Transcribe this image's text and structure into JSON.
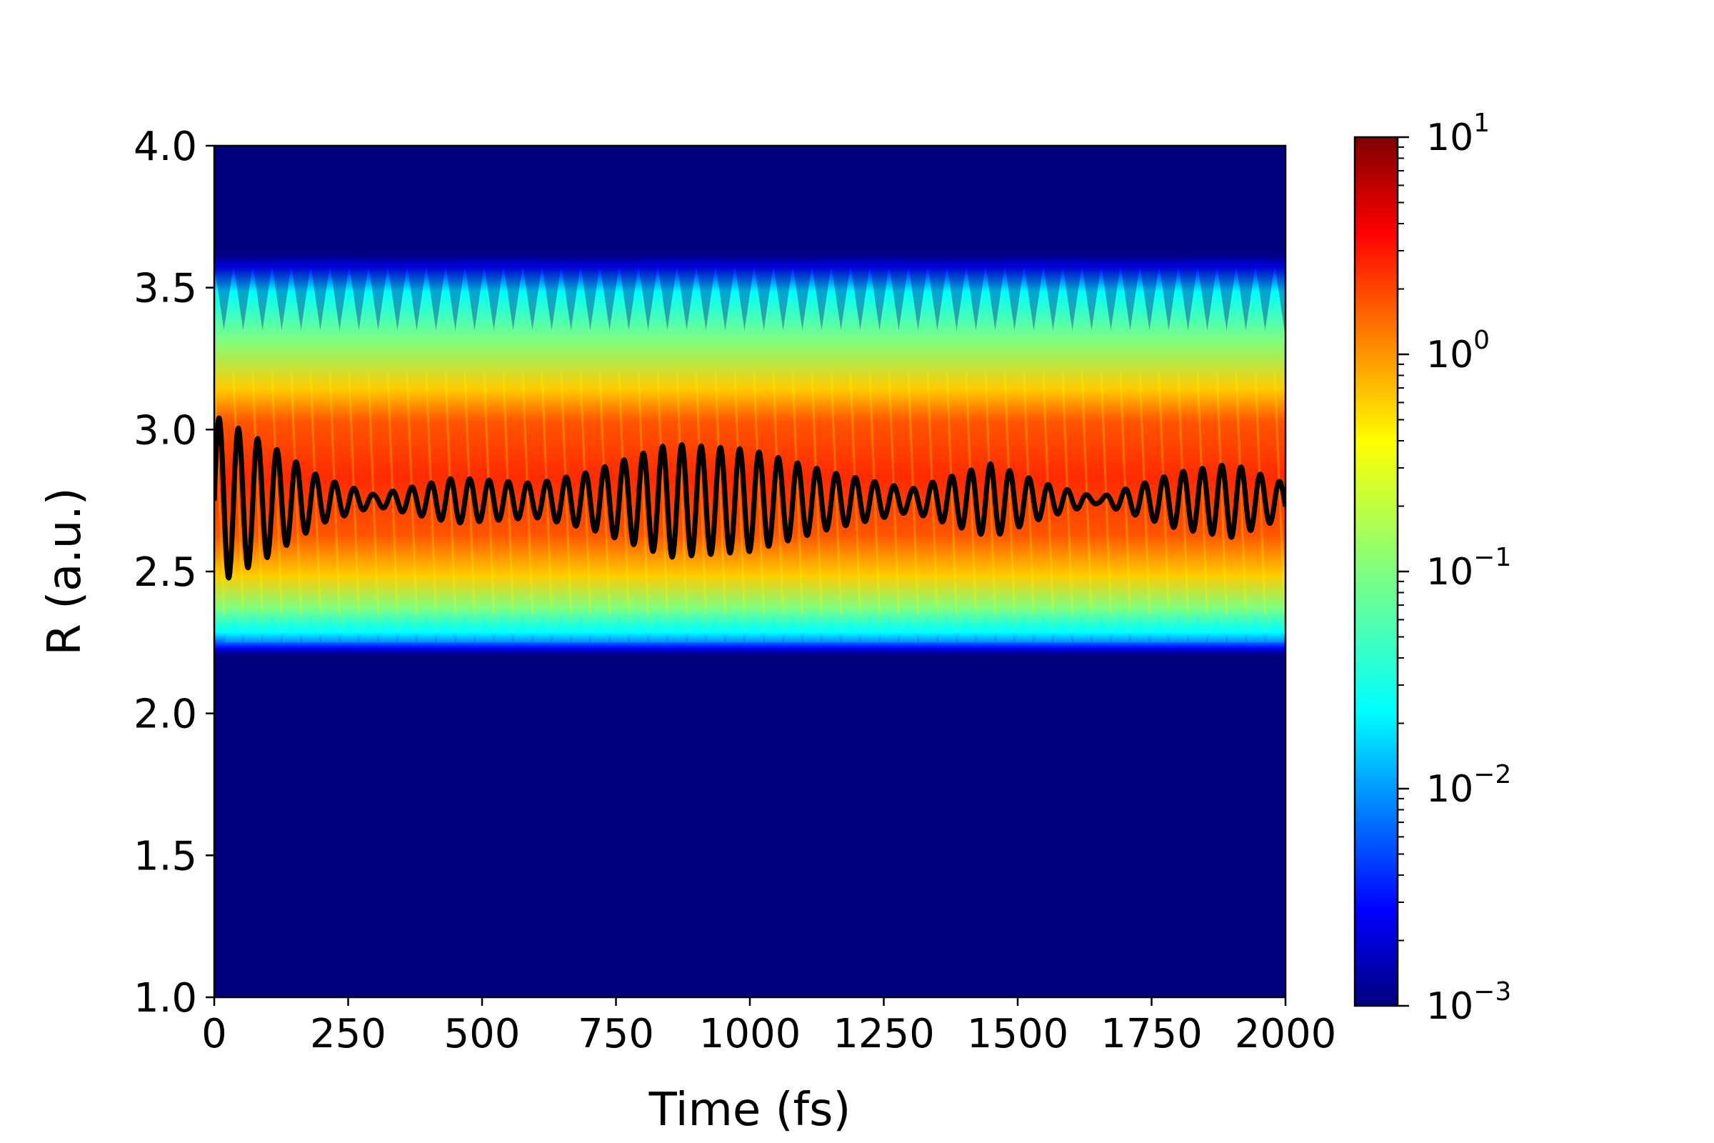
{
  "chart_data": {
    "type": "heatmap",
    "title": "",
    "xlabel": "Time (fs)",
    "ylabel": "R (a.u.)",
    "xlim": [
      0,
      2000
    ],
    "ylim": [
      1.0,
      4.0
    ],
    "x_ticks": [
      "0",
      "250",
      "500",
      "750",
      "1000",
      "1250",
      "1500",
      "1750",
      "2000"
    ],
    "y_ticks": [
      "1.0",
      "1.5",
      "2.0",
      "2.5",
      "3.0",
      "3.5",
      "4.0"
    ],
    "colormap": "jet",
    "color_scale": "log",
    "colorbar_range": [
      0.001,
      10
    ],
    "colorbar_ticks": [
      {
        "base": "10",
        "exp": "1",
        "value": 10
      },
      {
        "base": "10",
        "exp": "0",
        "value": 1
      },
      {
        "base": "10",
        "exp": "−1",
        "value": 0.1
      },
      {
        "base": "10",
        "exp": "−2",
        "value": 0.01
      },
      {
        "base": "10",
        "exp": "−3",
        "value": 0.001
      }
    ],
    "density_band": {
      "r_min": 2.2,
      "r_max": 3.63,
      "core_r_min": 2.35,
      "core_r_max": 3.2
    },
    "expectation_line": {
      "color": "#000000",
      "center_r": 2.75,
      "period_fs": 36,
      "envelope": [
        {
          "t": 0,
          "amp": 0.3
        },
        {
          "t": 100,
          "amp": 0.2
        },
        {
          "t": 200,
          "amp": 0.08
        },
        {
          "t": 300,
          "amp": 0.02
        },
        {
          "t": 450,
          "amp": 0.08
        },
        {
          "t": 600,
          "amp": 0.06
        },
        {
          "t": 700,
          "amp": 0.1
        },
        {
          "t": 850,
          "amp": 0.2
        },
        {
          "t": 1000,
          "amp": 0.18
        },
        {
          "t": 1150,
          "amp": 0.1
        },
        {
          "t": 1300,
          "amp": 0.04
        },
        {
          "t": 1450,
          "amp": 0.13
        },
        {
          "t": 1550,
          "amp": 0.06
        },
        {
          "t": 1650,
          "amp": 0.01
        },
        {
          "t": 1800,
          "amp": 0.1
        },
        {
          "t": 1900,
          "amp": 0.13
        },
        {
          "t": 2000,
          "amp": 0.06
        }
      ]
    }
  }
}
